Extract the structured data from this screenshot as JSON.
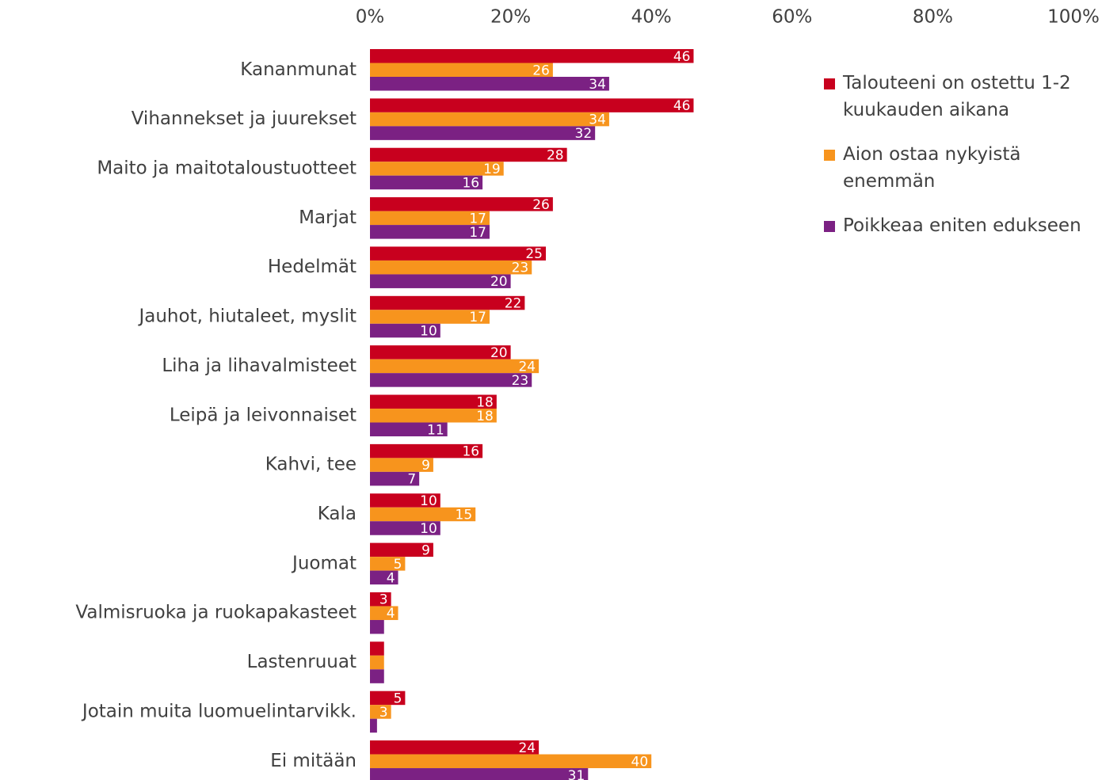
{
  "chart_data": {
    "type": "hbar",
    "categories": [
      "Kananmunat",
      "Vihannekset ja juurekset",
      "Maito ja maitotaloustuotteet",
      "Marjat",
      "Hedelmät",
      "Jauhot, hiutaleet, myslit",
      "Liha ja lihavalmisteet",
      "Leipä ja leivonnaiset",
      "Kahvi, tee",
      "Kala",
      "Juomat",
      "Valmisruoka ja ruokapakasteet",
      "Lastenruuat",
      "Jotain muita luomuelintarvikk.",
      "Ei mitään"
    ],
    "series": [
      {
        "name": "Talouteeni on ostettu 1-2 kuukauden aikana",
        "color": "#c8001e",
        "values": [
          46,
          46,
          28,
          26,
          25,
          22,
          20,
          18,
          16,
          10,
          9,
          3,
          2,
          5,
          24
        ]
      },
      {
        "name": "Aion ostaa nykyistä enemmän",
        "color": "#f7941d",
        "values": [
          26,
          34,
          19,
          17,
          23,
          17,
          24,
          18,
          9,
          15,
          5,
          4,
          2,
          3,
          40
        ]
      },
      {
        "name": "Poikkeaa eniten edukseen",
        "color": "#7b2183",
        "values": [
          34,
          32,
          16,
          17,
          20,
          10,
          23,
          11,
          7,
          10,
          4,
          2,
          2,
          1,
          31
        ]
      }
    ],
    "xlim": [
      0,
      100
    ],
    "xticks": [
      {
        "value": 0,
        "label": "0%"
      },
      {
        "value": 20,
        "label": "20%"
      },
      {
        "value": 40,
        "label": "40%"
      },
      {
        "value": 60,
        "label": "60%"
      },
      {
        "value": 80,
        "label": "80%"
      },
      {
        "value": 100,
        "label": "100%"
      }
    ],
    "grid": false,
    "legend": "right"
  }
}
